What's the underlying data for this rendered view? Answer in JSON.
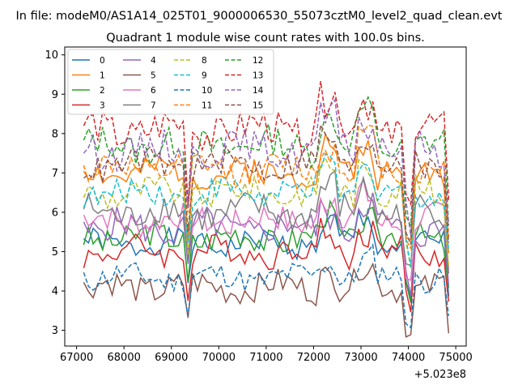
{
  "chart_data": {
    "type": "line",
    "suptitle": "In file: modeM0/AS1A14_025T01_9000006530_55073cztM0_level2_quad_clean.evt",
    "title": "Quadrant 1 module wise count rates with 100.0s bins.",
    "xlabel": "",
    "ylabel": "",
    "x_offset_label": "+5.023e8",
    "xlim": [
      66750,
      75220
    ],
    "ylim": [
      2.6,
      10.2
    ],
    "x_start": 67150,
    "x_step": 100,
    "xticks": [
      67000,
      68000,
      69000,
      70000,
      71000,
      72000,
      73000,
      74000,
      75000
    ],
    "xtick_labels": [
      "67000",
      "68000",
      "69000",
      "70000",
      "71000",
      "72000",
      "73000",
      "74000",
      "75000"
    ],
    "yticks": [
      3,
      4,
      5,
      6,
      7,
      8,
      9,
      10
    ],
    "ytick_labels": [
      "3",
      "4",
      "5",
      "6",
      "7",
      "8",
      "9",
      "10"
    ],
    "legend_position": "upper-left",
    "series": [
      {
        "name": "0",
        "color": "#1f77b4",
        "dash": "solid",
        "base": 5.2,
        "amp": 0.3,
        "seed": 1
      },
      {
        "name": "1",
        "color": "#ff7f0e",
        "dash": "solid",
        "base": 7.0,
        "amp": 0.35,
        "seed": 2
      },
      {
        "name": "2",
        "color": "#2ca02c",
        "dash": "solid",
        "base": 5.35,
        "amp": 0.35,
        "seed": 3
      },
      {
        "name": "3",
        "color": "#d62728",
        "dash": "solid",
        "base": 5.0,
        "amp": 0.35,
        "seed": 4
      },
      {
        "name": "4",
        "color": "#9467bd",
        "dash": "solid",
        "base": 5.6,
        "amp": 0.4,
        "seed": 5
      },
      {
        "name": "5",
        "color": "#8c564b",
        "dash": "solid",
        "base": 4.1,
        "amp": 0.35,
        "seed": 6
      },
      {
        "name": "6",
        "color": "#e377c2",
        "dash": "solid",
        "base": 5.8,
        "amp": 0.35,
        "seed": 7
      },
      {
        "name": "7",
        "color": "#7f7f7f",
        "dash": "solid",
        "base": 6.0,
        "amp": 0.4,
        "seed": 8
      },
      {
        "name": "8",
        "color": "#bcbd22",
        "dash": "dashed",
        "base": 6.5,
        "amp": 0.35,
        "seed": 9
      },
      {
        "name": "9",
        "color": "#17becf",
        "dash": "dashed",
        "base": 6.5,
        "amp": 0.35,
        "seed": 10
      },
      {
        "name": "10",
        "color": "#1f77b4",
        "dash": "dashed",
        "base": 4.35,
        "amp": 0.3,
        "seed": 11
      },
      {
        "name": "11",
        "color": "#ff7f0e",
        "dash": "dashed",
        "base": 7.1,
        "amp": 0.35,
        "seed": 12
      },
      {
        "name": "12",
        "color": "#2ca02c",
        "dash": "dashed",
        "base": 7.7,
        "amp": 0.4,
        "seed": 13
      },
      {
        "name": "13",
        "color": "#d62728",
        "dash": "dashed",
        "base": 8.1,
        "amp": 0.45,
        "seed": 14
      },
      {
        "name": "14",
        "color": "#9467bd",
        "dash": "dashed",
        "base": 7.6,
        "amp": 0.4,
        "seed": 15
      },
      {
        "name": "15",
        "color": "#8c564b",
        "dash": "dashed",
        "base": 7.2,
        "amp": 0.35,
        "seed": 16
      }
    ],
    "n_points": 78,
    "dips": [
      {
        "x": 69350,
        "factor": 0.8
      },
      {
        "x": 73950,
        "factor": 0.78
      },
      {
        "x": 74050,
        "factor": 0.72
      },
      {
        "x": 74850,
        "factor": 0.75
      }
    ],
    "bumps": [
      {
        "x": 72300,
        "factor": 1.09
      },
      {
        "x": 73100,
        "factor": 1.1
      }
    ]
  }
}
